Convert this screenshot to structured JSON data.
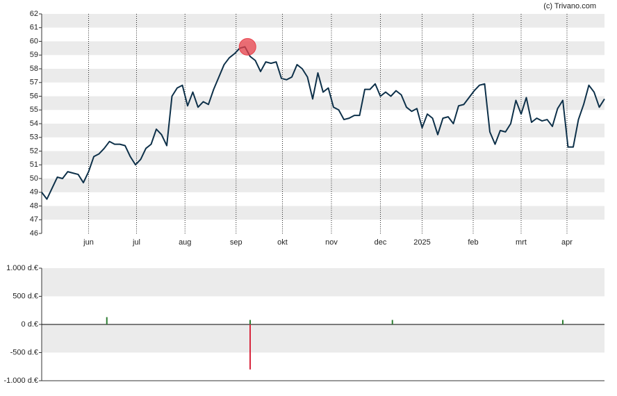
{
  "credit": "(c) Trivano.com",
  "chart_data": [
    {
      "type": "line",
      "values": [
        49,
        48.5,
        49.3,
        50.1,
        50.0,
        50.5,
        50.4,
        50.3,
        49.7,
        50.5,
        51.6,
        51.8,
        52.2,
        52.7,
        52.5,
        52.5,
        52.4,
        51.6,
        51.0,
        51.4,
        52.2,
        52.5,
        53.6,
        53.2,
        52.4,
        56.0,
        56.6,
        56.8,
        55.3,
        56.3,
        55.2,
        55.6,
        55.4,
        56.5,
        57.4,
        58.3,
        58.8,
        59.1,
        59.5,
        59.6,
        58.9,
        58.6,
        57.8,
        58.5,
        58.4,
        58.5,
        57.3,
        57.2,
        57.4,
        58.3,
        58.0,
        57.4,
        55.8,
        57.7,
        56.3,
        56.6,
        55.2,
        55.0,
        54.3,
        54.4,
        54.6,
        54.6,
        56.5,
        56.5,
        56.9,
        56.0,
        56.3,
        56.0,
        56.4,
        56.1,
        55.2,
        54.9,
        55.1,
        53.7,
        54.7,
        54.4,
        53.2,
        54.4,
        54.5,
        54.0,
        55.3,
        55.4,
        55.9,
        56.4,
        56.8,
        56.9,
        53.4,
        52.5,
        53.5,
        53.4,
        54.0,
        55.7,
        54.7,
        55.9,
        54.1,
        54.4,
        54.2,
        54.3,
        53.8,
        55.1,
        55.7,
        52.3,
        52.3,
        54.3,
        55.4,
        56.8,
        56.3,
        55.2,
        55.8
      ],
      "color": "#0d3049",
      "xlim": [
        0,
        108
      ],
      "xticks": [
        {
          "value": 9,
          "label": "jun"
        },
        {
          "value": 18.2,
          "label": "jul"
        },
        {
          "value": 27.5,
          "label": "aug"
        },
        {
          "value": 37.3,
          "label": "sep"
        },
        {
          "value": 46.2,
          "label": "okt"
        },
        {
          "value": 55.6,
          "label": "nov"
        },
        {
          "value": 65,
          "label": "dec"
        },
        {
          "value": 73,
          "label": "2025"
        },
        {
          "value": 82.8,
          "label": "feb"
        },
        {
          "value": 92,
          "label": "mrt"
        },
        {
          "value": 100.8,
          "label": "apr"
        }
      ],
      "ylim": [
        46,
        62
      ],
      "yticks": [
        46,
        47,
        48,
        49,
        50,
        51,
        52,
        53,
        54,
        55,
        56,
        57,
        58,
        59,
        60,
        61,
        62
      ],
      "markers": [
        {
          "x": 39.5,
          "y": 59.6,
          "color": "#e8414b"
        }
      ]
    },
    {
      "type": "bar",
      "x": [
        12.5,
        40,
        40,
        67.3,
        100
      ],
      "values": [
        130,
        80,
        -800,
        80,
        80
      ],
      "colors": [
        "#2e7d32",
        "#2e7d32",
        "#d7263d",
        "#2e7d32",
        "#2e7d32"
      ],
      "xlim": [
        0,
        108
      ],
      "ylim": [
        -1000,
        1000
      ],
      "yticks": [
        {
          "value": -1000,
          "label": "-1.000 d.€"
        },
        {
          "value": -500,
          "label": "-500 d.€"
        },
        {
          "value": 0,
          "label": "0 d.€"
        },
        {
          "value": 500,
          "label": "500 d.€"
        },
        {
          "value": 1000,
          "label": "1.000 d.€"
        }
      ]
    }
  ]
}
